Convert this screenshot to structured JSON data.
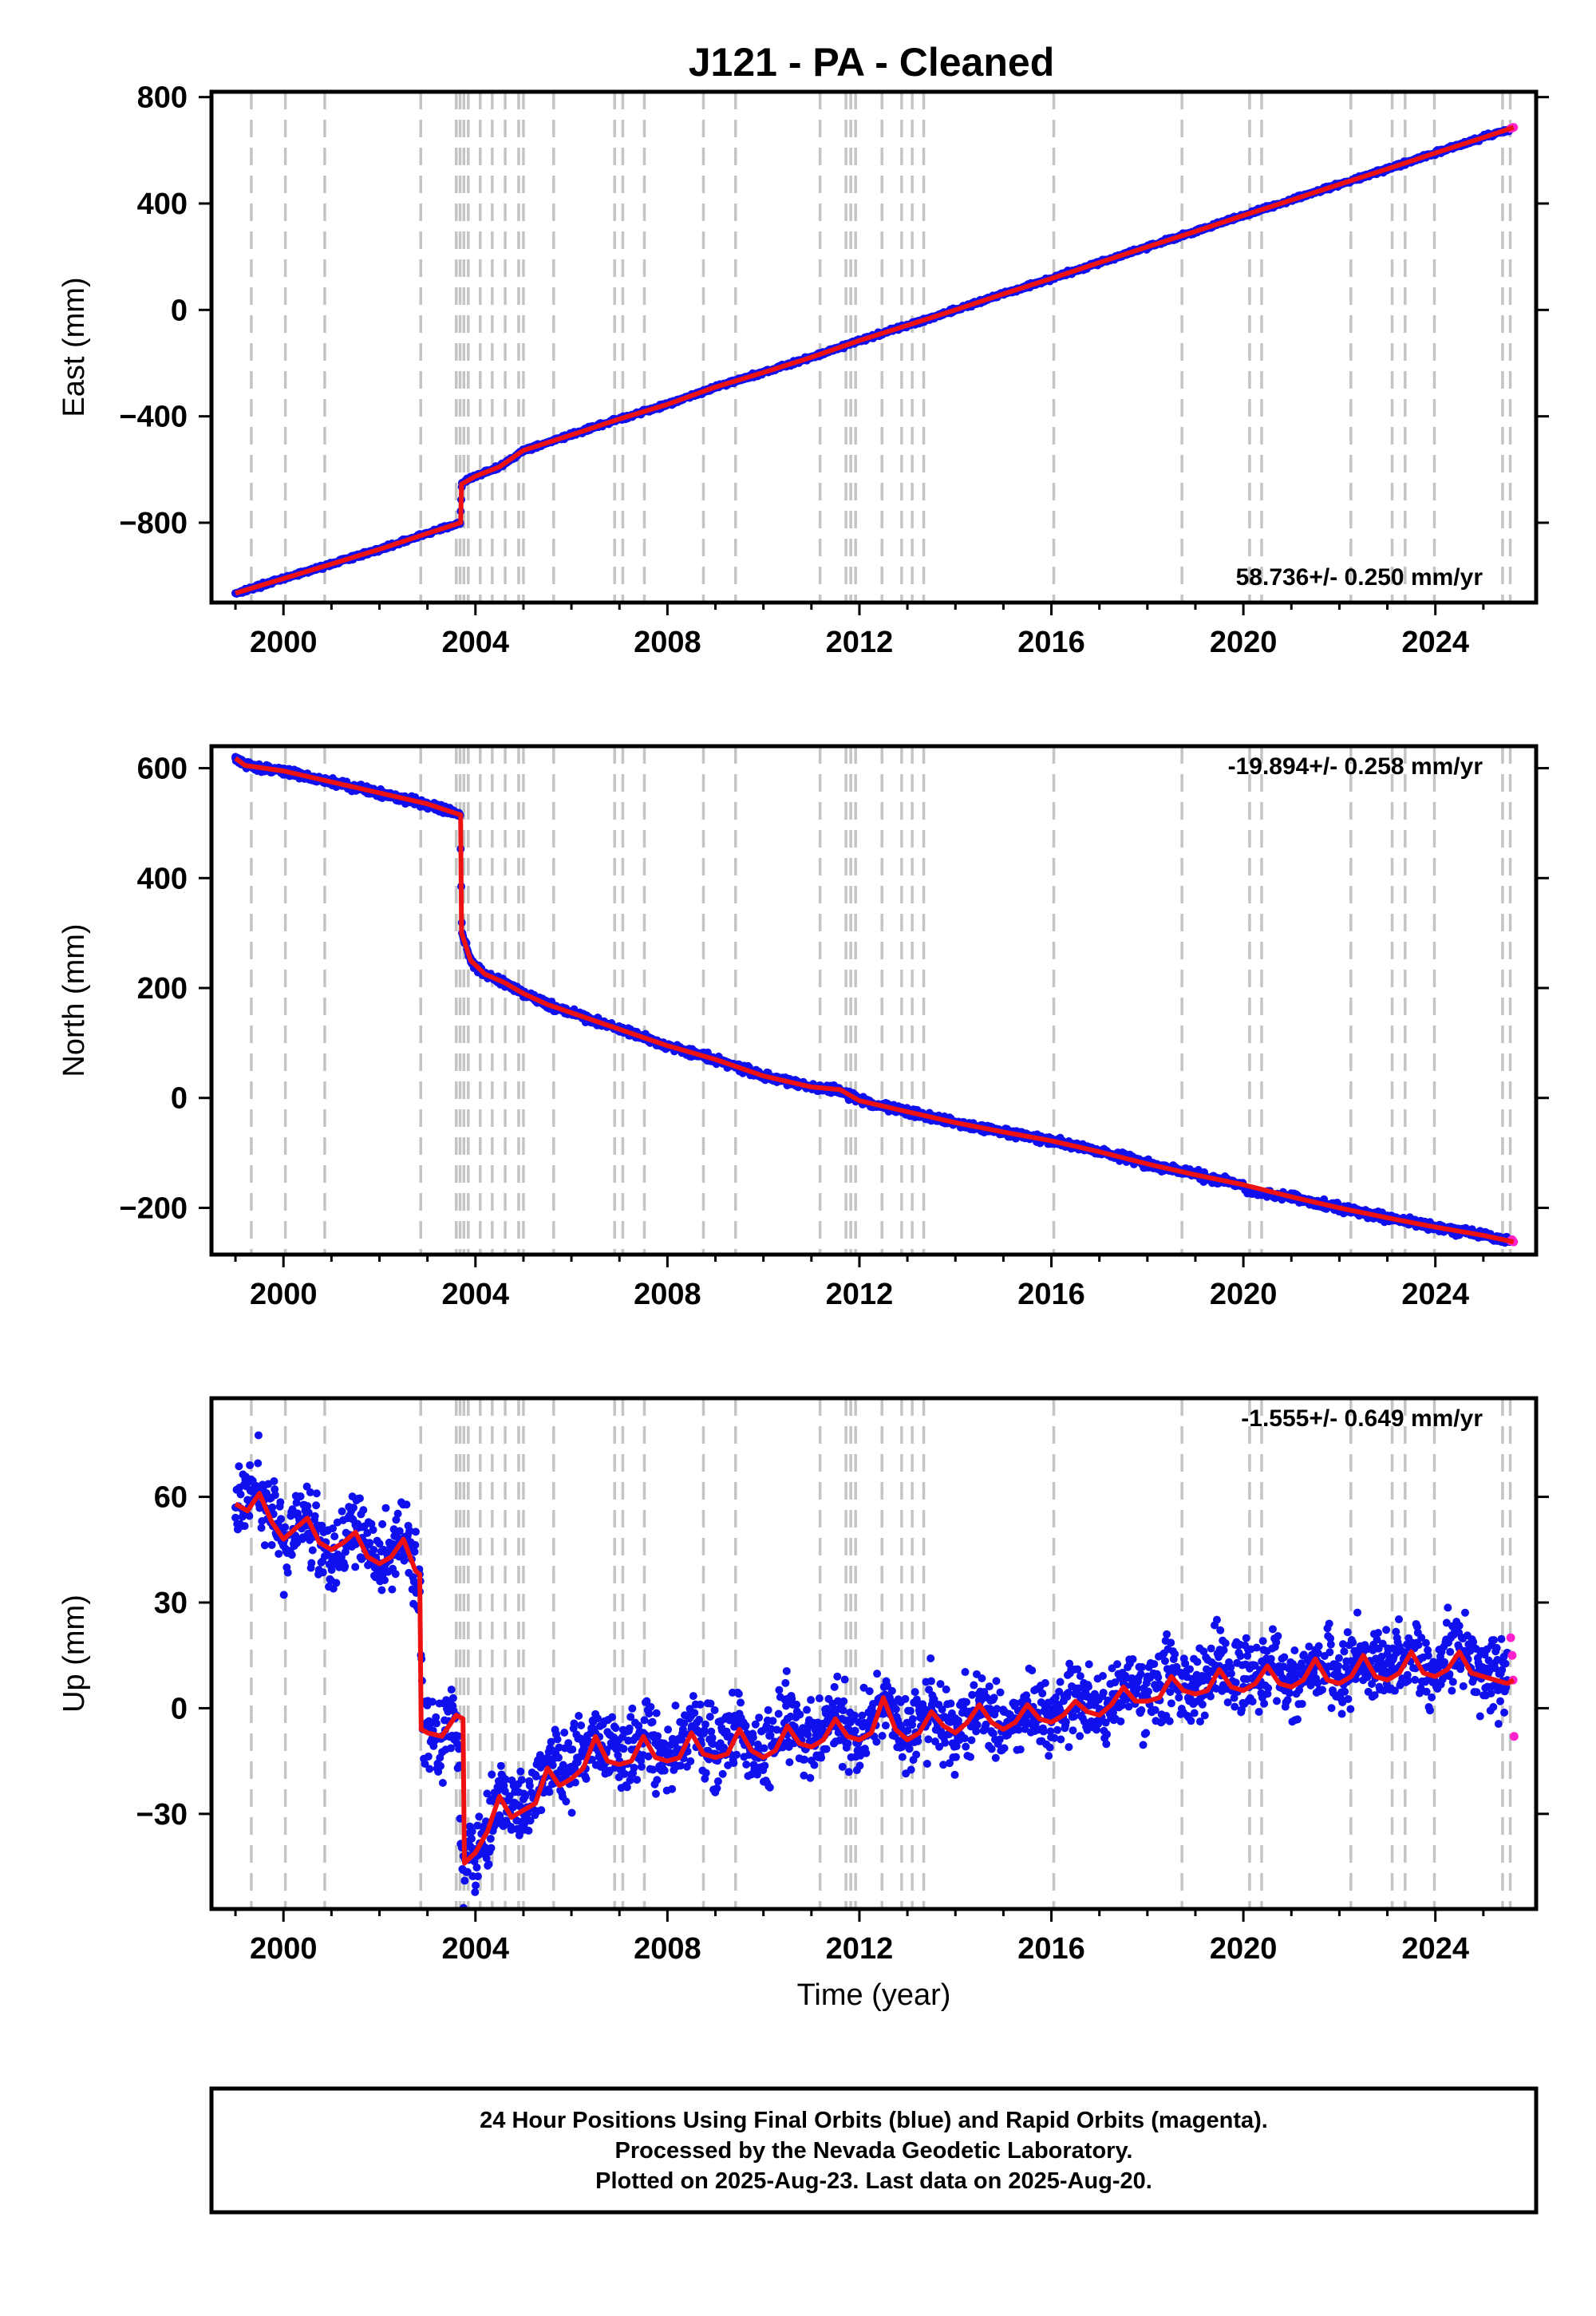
{
  "title": "J121  - PA - Cleaned",
  "colors": {
    "final_points": "#1010ee",
    "rapid_points": "#ff22cc",
    "model_line": "#ee1111",
    "event_lines": "#c4c4c4",
    "frame": "#000000"
  },
  "x_tick_labels": [
    "2000",
    "2004",
    "2008",
    "2012",
    "2016",
    "2020",
    "2024"
  ],
  "event_years": [
    1999.33,
    2000.04,
    2000.86,
    2002.86,
    2003.6,
    2003.68,
    2003.76,
    2003.85,
    2004.1,
    2004.35,
    2004.62,
    2004.9,
    2005.0,
    2005.63,
    2006.9,
    2007.07,
    2007.52,
    2008.75,
    2009.42,
    2011.18,
    2011.72,
    2011.82,
    2011.92,
    2012.47,
    2012.88,
    2013.1,
    2013.34,
    2016.05,
    2018.72,
    2020.13,
    2020.38,
    2022.24,
    2023.1,
    2023.37,
    2023.98,
    2025.4,
    2025.56
  ],
  "footer": {
    "line1": "24 Hour Positions Using Final Orbits (blue) and Rapid Orbits (magenta).",
    "line2": "Processed by the Nevada Geodetic Laboratory.",
    "line3": "Plotted on 2025-Aug-23. Last data on 2025-Aug-20."
  },
  "chart_data": [
    {
      "type": "scatter",
      "component": "east",
      "ylabel": "East (mm)",
      "xlabel": "",
      "xlim": [
        1998.5,
        2026.1
      ],
      "ylim": [
        -1100,
        820
      ],
      "yticks": [
        -800,
        -400,
        0,
        400,
        800
      ],
      "y_tick_labels": [
        "−800",
        "−400",
        "0",
        "400",
        "800"
      ],
      "rate_label": "58.736+/- 0.250 mm/yr",
      "rate_position": "bottom-right",
      "series": [
        {
          "role": "final",
          "x": [
            1999.0,
            2000.0,
            2001.0,
            2002.0,
            2003.0,
            2003.68,
            2003.72,
            2004.0,
            2004.5,
            2005.0,
            2006.0,
            2007.0,
            2008.0,
            2009.0,
            2010.0,
            2011.0,
            2012.0,
            2013.0,
            2014.0,
            2015.0,
            2016.0,
            2017.0,
            2018.0,
            2019.0,
            2020.0,
            2021.0,
            2022.0,
            2023.0,
            2024.0,
            2025.0,
            2025.55
          ],
          "y": [
            -1065,
            -1010,
            -955,
            -900,
            -840,
            -800,
            -650,
            -625,
            -590,
            -528,
            -470,
            -410,
            -355,
            -290,
            -235,
            -178,
            -115,
            -58,
            0,
            60,
            118,
            178,
            237,
            295,
            355,
            413,
            472,
            530,
            590,
            648,
            680
          ]
        },
        {
          "role": "rapid",
          "x": [
            2025.57,
            2025.6,
            2025.63
          ],
          "y": [
            682,
            684,
            686
          ]
        }
      ],
      "model": {
        "x": [
          1999.0,
          2000.0,
          2001.0,
          2002.0,
          2003.0,
          2003.69,
          2003.71,
          2004.0,
          2004.5,
          2005.0,
          2006.0,
          2007.0,
          2008.0,
          2009.0,
          2010.0,
          2011.0,
          2012.0,
          2013.0,
          2014.0,
          2015.0,
          2016.0,
          2017.0,
          2018.0,
          2019.0,
          2020.0,
          2021.0,
          2022.0,
          2023.0,
          2024.0,
          2025.0,
          2025.63
        ],
        "y": [
          -1065,
          -1010,
          -955,
          -900,
          -840,
          -800,
          -655,
          -625,
          -590,
          -528,
          -470,
          -410,
          -355,
          -290,
          -235,
          -178,
          -115,
          -58,
          0,
          60,
          118,
          178,
          237,
          295,
          355,
          413,
          472,
          530,
          590,
          648,
          686
        ]
      }
    },
    {
      "type": "scatter",
      "component": "north",
      "ylabel": "North (mm)",
      "xlabel": "",
      "xlim": [
        1998.5,
        2026.1
      ],
      "ylim": [
        -285,
        640
      ],
      "yticks": [
        -200,
        0,
        200,
        400,
        600
      ],
      "y_tick_labels": [
        "−200",
        "0",
        "200",
        "400",
        "600"
      ],
      "rate_label": "-19.894+/- 0.258 mm/yr",
      "rate_position": "top-right",
      "series": [
        {
          "role": "final",
          "x": [
            1999.0,
            1999.2,
            2000.0,
            2001.0,
            2002.0,
            2003.0,
            2003.68,
            2003.72,
            2003.9,
            2004.2,
            2004.6,
            2005.0,
            2005.5,
            2006.0,
            2007.0,
            2008.0,
            2009.0,
            2010.0,
            2011.0,
            2011.6,
            2012.0,
            2013.0,
            2014.0,
            2015.0,
            2016.0,
            2017.0,
            2018.0,
            2019.0,
            2020.0,
            2020.1,
            2021.0,
            2022.0,
            2023.0,
            2024.0,
            2025.0,
            2025.55
          ],
          "y": [
            618,
            605,
            595,
            575,
            555,
            535,
            515,
            300,
            250,
            225,
            210,
            190,
            170,
            155,
            125,
            95,
            70,
            40,
            20,
            15,
            -5,
            -25,
            -45,
            -62,
            -78,
            -98,
            -120,
            -140,
            -158,
            -172,
            -180,
            -200,
            -218,
            -235,
            -250,
            -262
          ]
        },
        {
          "role": "rapid",
          "x": [
            2025.57,
            2025.6,
            2025.63
          ],
          "y": [
            -260,
            -258,
            -262
          ]
        }
      ],
      "model": {
        "x": [
          1999.0,
          1999.2,
          2000.0,
          2001.0,
          2002.0,
          2003.0,
          2003.69,
          2003.71,
          2003.9,
          2004.2,
          2004.6,
          2005.0,
          2005.5,
          2006.0,
          2007.0,
          2008.0,
          2009.0,
          2010.0,
          2011.0,
          2011.6,
          2012.0,
          2013.0,
          2014.0,
          2015.0,
          2016.0,
          2017.0,
          2018.0,
          2019.0,
          2020.0,
          2021.0,
          2022.0,
          2023.0,
          2024.0,
          2025.0,
          2025.63
        ],
        "y": [
          618,
          605,
          595,
          575,
          555,
          535,
          515,
          300,
          250,
          225,
          210,
          190,
          170,
          155,
          125,
          95,
          70,
          40,
          20,
          15,
          -5,
          -25,
          -45,
          -62,
          -78,
          -98,
          -120,
          -140,
          -158,
          -180,
          -200,
          -218,
          -235,
          -250,
          -262
        ]
      }
    },
    {
      "type": "scatter",
      "component": "up",
      "ylabel": "Up (mm)",
      "xlabel": "Time (year)",
      "xlim": [
        1998.5,
        2026.1
      ],
      "ylim": [
        -57,
        88
      ],
      "yticks": [
        -30,
        0,
        30,
        60
      ],
      "y_tick_labels": [
        "−30",
        "0",
        "30",
        "60"
      ],
      "rate_label": "-1.555+/- 0.649 mm/yr",
      "rate_position": "top-right",
      "series": [
        {
          "role": "final",
          "x": [
            1999.0,
            1999.5,
            2000.0,
            2000.5,
            2001.0,
            2001.5,
            2002.0,
            2002.5,
            2002.84,
            2002.9,
            2003.3,
            2003.6,
            2003.75,
            2004.0,
            2004.5,
            2005.0,
            2005.5,
            2006.0,
            2006.5,
            2007.0,
            2007.5,
            2008.0,
            2008.5,
            2009.0,
            2009.5,
            2010.0,
            2010.5,
            2011.0,
            2011.5,
            2012.0,
            2012.5,
            2013.0,
            2013.5,
            2014.0,
            2014.5,
            2015.0,
            2015.5,
            2016.0,
            2016.5,
            2017.0,
            2017.5,
            2018.0,
            2018.5,
            2019.0,
            2019.5,
            2020.0,
            2020.5,
            2021.0,
            2021.5,
            2022.0,
            2022.5,
            2023.0,
            2023.5,
            2024.0,
            2024.5,
            2025.0,
            2025.5
          ],
          "y": [
            57,
            62,
            47,
            55,
            43,
            52,
            40,
            48,
            38,
            -6,
            -8,
            -2,
            -42,
            -40,
            -26,
            -30,
            -16,
            -18,
            -7,
            -15,
            -7,
            -15,
            -6,
            -13,
            -5,
            -14,
            -3,
            -10,
            -2,
            -9,
            2,
            -9,
            0,
            -7,
            1,
            -6,
            2,
            -4,
            4,
            -1,
            7,
            3,
            9,
            5,
            12,
            6,
            13,
            7,
            15,
            8,
            16,
            9,
            17,
            10,
            17,
            10,
            8
          ]
        },
        {
          "role": "rapid",
          "x": [
            2025.57,
            2025.6,
            2025.62,
            2025.64
          ],
          "y": [
            20,
            15,
            8,
            -8
          ]
        }
      ],
      "model": {
        "x": [
          1999.0,
          1999.25,
          1999.5,
          1999.75,
          2000.0,
          2000.25,
          2000.5,
          2000.75,
          2001.0,
          2001.25,
          2001.5,
          2001.75,
          2002.0,
          2002.25,
          2002.5,
          2002.75,
          2002.84,
          2002.87,
          2003.0,
          2003.3,
          2003.6,
          2003.74,
          2003.77,
          2004.0,
          2004.25,
          2004.5,
          2004.75,
          2005.0,
          2005.25,
          2005.5,
          2005.75,
          2006.0,
          2006.25,
          2006.5,
          2006.75,
          2007.0,
          2007.25,
          2007.5,
          2007.75,
          2008.0,
          2008.25,
          2008.5,
          2008.75,
          2009.0,
          2009.25,
          2009.5,
          2009.75,
          2010.0,
          2010.25,
          2010.5,
          2010.75,
          2011.0,
          2011.25,
          2011.5,
          2011.75,
          2012.0,
          2012.25,
          2012.5,
          2012.75,
          2013.0,
          2013.25,
          2013.5,
          2013.75,
          2014.0,
          2014.25,
          2014.5,
          2014.75,
          2015.0,
          2015.25,
          2015.5,
          2015.75,
          2016.0,
          2016.25,
          2016.5,
          2016.75,
          2017.0,
          2017.25,
          2017.5,
          2017.75,
          2018.0,
          2018.25,
          2018.5,
          2018.75,
          2019.0,
          2019.25,
          2019.5,
          2019.75,
          2020.0,
          2020.25,
          2020.5,
          2020.75,
          2021.0,
          2021.25,
          2021.5,
          2021.75,
          2022.0,
          2022.25,
          2022.5,
          2022.75,
          2023.0,
          2023.25,
          2023.5,
          2023.75,
          2024.0,
          2024.25,
          2024.5,
          2024.75,
          2025.0,
          2025.25,
          2025.5,
          2025.63
        ],
        "y": [
          58,
          56,
          61,
          53,
          48,
          51,
          54,
          47,
          45,
          47,
          50,
          43,
          41,
          43,
          48,
          39,
          38,
          -6,
          -7,
          -8,
          -2,
          -3,
          -44,
          -41,
          -35,
          -25,
          -31,
          -29,
          -27,
          -17,
          -22,
          -20,
          -17,
          -8,
          -15,
          -16,
          -15,
          -8,
          -14,
          -15,
          -14,
          -7,
          -13,
          -14,
          -13,
          -6,
          -12,
          -14,
          -12,
          -5,
          -10,
          -11,
          -9,
          -3,
          -8,
          -9,
          -7,
          3,
          -6,
          -9,
          -7,
          -1,
          -5,
          -7,
          -4,
          1,
          -4,
          -6,
          -4,
          1,
          -3,
          -4,
          -2,
          2,
          -1,
          -2,
          1,
          6,
          2,
          2,
          3,
          9,
          5,
          4,
          5,
          11,
          6,
          5,
          7,
          12,
          7,
          6,
          8,
          14,
          8,
          7,
          9,
          15,
          9,
          8,
          10,
          16,
          10,
          9,
          11,
          16,
          10,
          9,
          8,
          7,
          8
        ]
      }
    }
  ]
}
